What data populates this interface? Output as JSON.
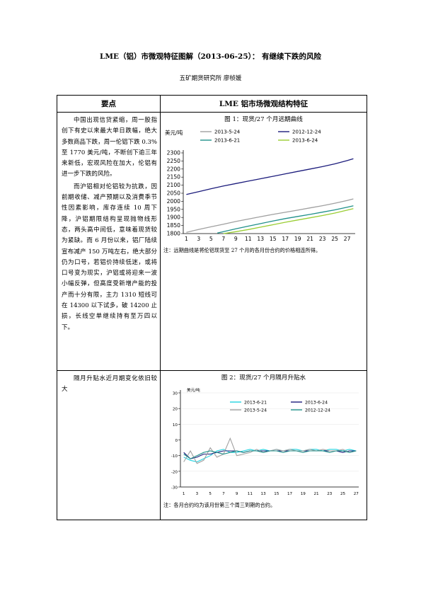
{
  "document": {
    "title": "LME（铝）市微观特征图解（2013-06-25）：  有继续下跌的风险",
    "author": "五矿期货研究所  廖桢媛"
  },
  "table": {
    "header_left": "要点",
    "header_right": "LME 铝市场微观结构特征",
    "row1": {
      "para1": "中国出现信贷紧缩，周一股指创下有史以来最大单日跌幅，绝大多数商品下跌，周一伦铝下跌 0.3%至 1770 美元/吨，不断创下逾三年来新低，宏观风险在加大，伦铝有进一步下跌的风险。",
      "para2": "而沪铝相对伦铝较为抗跌，因前期收储、减产预期以及消费季节性因素影响，库存连续 10 周下降，沪铝期限结构呈现抛物线形态，两头高中间低，意味着现货较为紧缺。而 6 月份以来，铝厂陆续宣布减产 150 万吨左右，绝大部分仍为口号，若铝价持续低迷，或将口号变为现实，沪铝或将迎来一波小幅反弹，但高度受新增产能的投产而十分有限，主力 1310 短线可在 14300 以下试多，破 14200 止损，长线空单继续持有至万四以下。",
      "fig_title": "图 1：现货/27 个月远期曲线",
      "fig_note": "注：远期曲线是将伦铝现货至 27 个月的各月份合约的价格相连所得。"
    },
    "row2": {
      "text": "隔月升贴水近月期变化依旧较大",
      "fig_title": "图 2：现货/27 个月隔月升贴水",
      "fig_note": "注：各月合约均为该月份第三个周三到期的合约。"
    }
  },
  "chart_data": [
    {
      "type": "line",
      "title": "图 1：现货/27 个月远期曲线",
      "ylabel": "美元/吨",
      "ylim": [
        1800,
        2300
      ],
      "yticks": [
        1800,
        1850,
        1900,
        1950,
        2000,
        2050,
        2100,
        2150,
        2200,
        2250,
        2300
      ],
      "xticks": [
        1,
        3,
        5,
        7,
        9,
        11,
        13,
        15,
        17,
        19,
        21,
        23,
        25,
        27
      ],
      "legend": "top",
      "series": [
        {
          "name": "2013-5-24",
          "color": "#a0a0a0",
          "x": [
            1,
            3,
            5,
            7,
            9,
            11,
            13,
            15,
            17,
            19,
            21,
            23,
            25,
            27,
            28
          ],
          "values": [
            1808,
            1826,
            1842,
            1858,
            1875,
            1890,
            1905,
            1919,
            1932,
            1945,
            1959,
            1973,
            1988,
            2005,
            2015
          ]
        },
        {
          "name": "2012-12-24",
          "color": "#1c1c7c",
          "x": [
            1,
            3,
            5,
            7,
            9,
            11,
            13,
            15,
            17,
            19,
            21,
            23,
            25,
            27,
            28
          ],
          "values": [
            2042,
            2060,
            2078,
            2095,
            2110,
            2125,
            2140,
            2155,
            2170,
            2185,
            2200,
            2215,
            2232,
            2252,
            2264
          ]
        },
        {
          "name": "2013-6-21",
          "color": "#20908a",
          "x": [
            6,
            7,
            9,
            11,
            13,
            15,
            17,
            19,
            21,
            23,
            25,
            27,
            28
          ],
          "values": [
            1803,
            1812,
            1830,
            1846,
            1862,
            1878,
            1893,
            1906,
            1919,
            1933,
            1947,
            1963,
            1972
          ]
        },
        {
          "name": "2013-6-24",
          "color": "#9acd32",
          "x": [
            7,
            9,
            11,
            13,
            15,
            17,
            19,
            21,
            23,
            25,
            27,
            28
          ],
          "values": [
            1800,
            1812,
            1825,
            1840,
            1855,
            1870,
            1884,
            1898,
            1912,
            1927,
            1945,
            1955
          ]
        }
      ]
    },
    {
      "type": "line",
      "title": "图 2：现货/27 个月隔月升贴水",
      "ylabel": "美元/吨",
      "ylim": [
        -30,
        30
      ],
      "yticks": [
        -30,
        -20,
        -10,
        0,
        10,
        20,
        30
      ],
      "xticks": [
        1,
        3,
        5,
        7,
        9,
        11,
        13,
        15,
        17,
        19,
        21,
        23,
        25,
        27
      ],
      "legend": "top",
      "series": [
        {
          "name": "2013-6-21",
          "color": "#22d3e0",
          "x": [
            1,
            2,
            3,
            4,
            5,
            6,
            7,
            8,
            9,
            10,
            11,
            12,
            13,
            14,
            15,
            16,
            17,
            18,
            19,
            20,
            21,
            22,
            23,
            24,
            25,
            26,
            27
          ],
          "values": [
            -11,
            -13,
            -14,
            -12,
            -10,
            -7,
            -6,
            -8,
            -8,
            -7,
            -6,
            -7,
            -6,
            -7,
            -6,
            -7,
            -6,
            -6,
            -7,
            -6,
            -6,
            -7,
            -6,
            -6,
            -7,
            -6,
            -7
          ]
        },
        {
          "name": "2013-6-24",
          "color": "#1c1c7c",
          "x": [
            1,
            2,
            3,
            4,
            5,
            6,
            7,
            8,
            9,
            10,
            11,
            12,
            13,
            14,
            15,
            16,
            17,
            18,
            19,
            20,
            21,
            22,
            23,
            24,
            25,
            26,
            27
          ],
          "values": [
            -8,
            -12,
            -11,
            -9,
            -9,
            -8,
            -7,
            -7,
            -7,
            -8,
            -7,
            -7,
            -7,
            -7,
            -7,
            -7,
            -7,
            -7,
            -7,
            -7,
            -7,
            -7,
            -7,
            -7,
            -8,
            -7,
            -7
          ]
        },
        {
          "name": "2013-5-24",
          "color": "#a0a0a0",
          "x": [
            1,
            2,
            3,
            4,
            5,
            6,
            7,
            8,
            9,
            10,
            11,
            12,
            13,
            14,
            15,
            16,
            17,
            18,
            19,
            20,
            21,
            22,
            23,
            24,
            25,
            26,
            27
          ],
          "values": [
            -14,
            -7,
            -15,
            -13,
            -5,
            -11,
            -9,
            1,
            -10,
            -9,
            -8,
            -6,
            -8,
            -7,
            -6,
            -7,
            -6,
            -7,
            -7,
            -6,
            -7,
            -6,
            -7,
            -7,
            -6,
            -8,
            -7
          ]
        },
        {
          "name": "2012-12-24",
          "color": "#20908a",
          "x": [
            1,
            2,
            3,
            4,
            5,
            6,
            7,
            8,
            9,
            10,
            11,
            12,
            13,
            14,
            15,
            16,
            17,
            18,
            19,
            20,
            21,
            22,
            23,
            24,
            25,
            26,
            27
          ],
          "values": [
            -9,
            -12,
            -10,
            -8,
            -7,
            -8,
            -9,
            -8,
            -7,
            -8,
            -7,
            -7,
            -8,
            -7,
            -7,
            -8,
            -7,
            -7,
            -8,
            -7,
            -7,
            -7,
            -8,
            -7,
            -7,
            -8,
            -7
          ]
        }
      ]
    }
  ]
}
